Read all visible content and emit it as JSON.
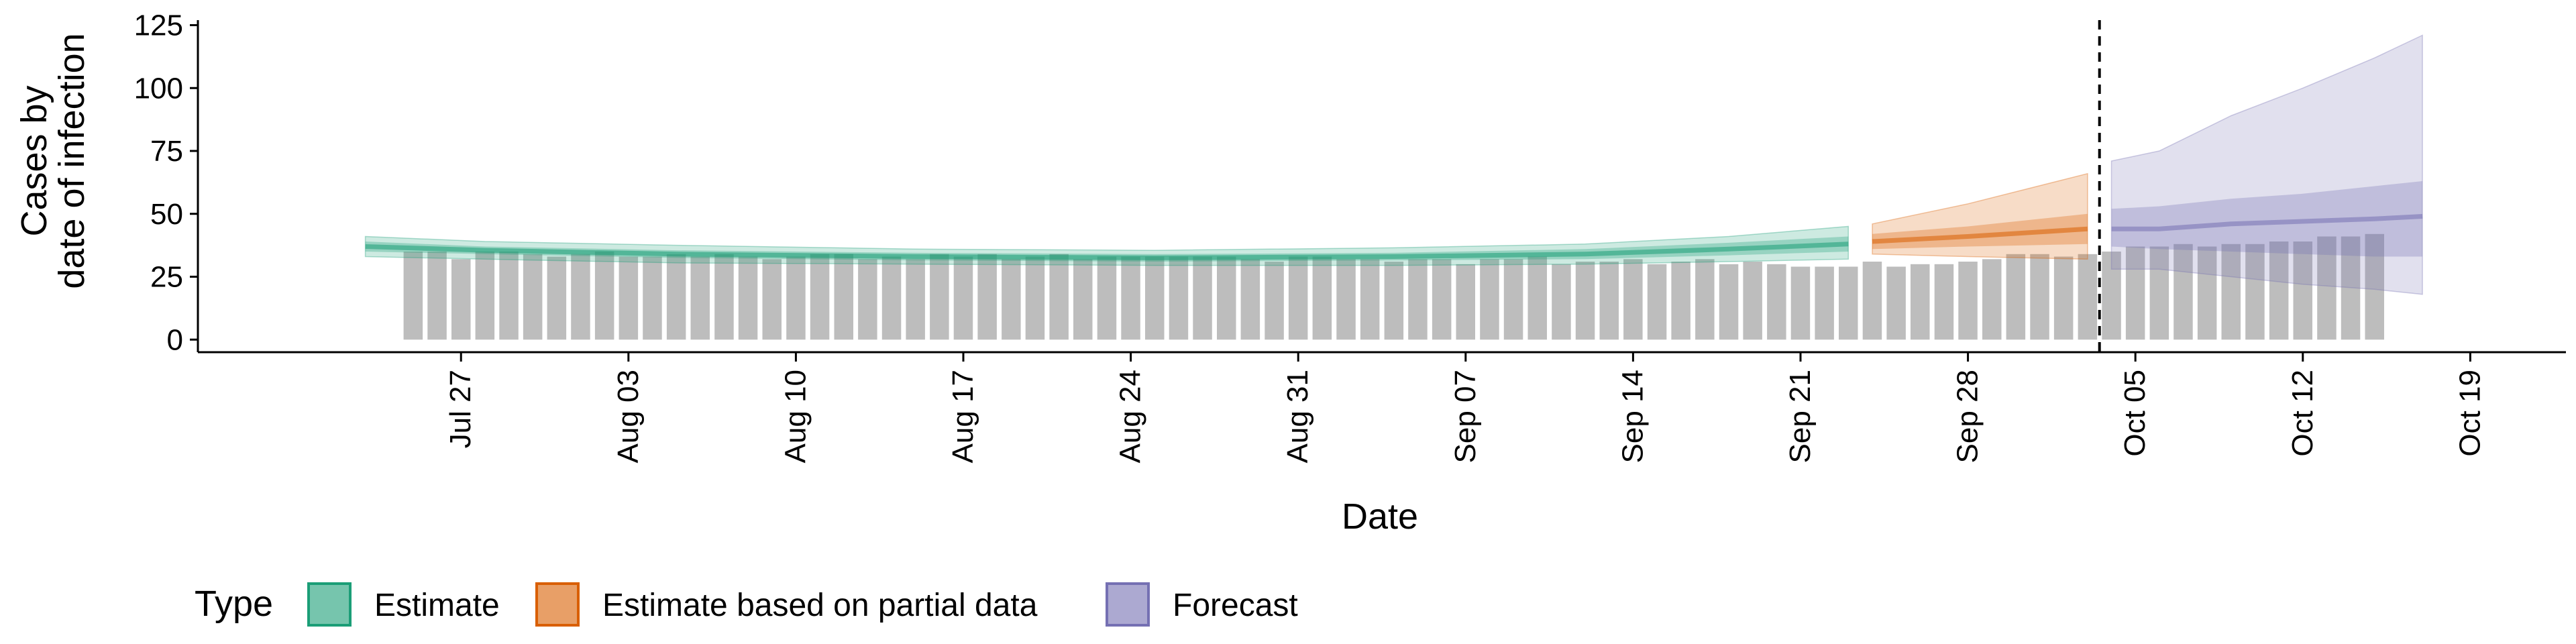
{
  "chart_data": {
    "type": "bar",
    "xlabel": "Date",
    "ylabel_lines": [
      "Cases by",
      "date of infection"
    ],
    "ylim": [
      -5,
      127
    ],
    "y_ticks": [
      0,
      25,
      50,
      75,
      100,
      125
    ],
    "xlim": [
      "2020-07-16",
      "2020-10-23"
    ],
    "x_ticks": [
      {
        "date": "2020-07-27",
        "label": "Jul 27"
      },
      {
        "date": "2020-08-03",
        "label": "Aug 03"
      },
      {
        "date": "2020-08-10",
        "label": "Aug 10"
      },
      {
        "date": "2020-08-17",
        "label": "Aug 17"
      },
      {
        "date": "2020-08-24",
        "label": "Aug 24"
      },
      {
        "date": "2020-08-31",
        "label": "Aug 31"
      },
      {
        "date": "2020-09-07",
        "label": "Sep 07"
      },
      {
        "date": "2020-09-14",
        "label": "Sep 14"
      },
      {
        "date": "2020-09-21",
        "label": "Sep 21"
      },
      {
        "date": "2020-09-28",
        "label": "Sep 28"
      },
      {
        "date": "2020-10-05",
        "label": "Oct 05"
      },
      {
        "date": "2020-10-12",
        "label": "Oct 12"
      },
      {
        "date": "2020-10-19",
        "label": "Oct 19"
      }
    ],
    "bars": {
      "start_date": "2020-07-25",
      "values": [
        35,
        35,
        32,
        35,
        35,
        34,
        33,
        34,
        35,
        33,
        33,
        34,
        33,
        34,
        33,
        32,
        33,
        34,
        34,
        32,
        33,
        32,
        34,
        33,
        34,
        32,
        33,
        34,
        32,
        33,
        33,
        33,
        33,
        33,
        33,
        32,
        31,
        33,
        33,
        32,
        32,
        31,
        32,
        32,
        30,
        32,
        32,
        33,
        30,
        31,
        31,
        32,
        30,
        31,
        32,
        30,
        31,
        30,
        29,
        29,
        29,
        31,
        29,
        30,
        30,
        31,
        32,
        34,
        34,
        33,
        34,
        35,
        37,
        37,
        38,
        37,
        38,
        38,
        39,
        39,
        41,
        41,
        42
      ]
    },
    "forecast_marker_date": "2020-10-03",
    "series": [
      {
        "name": "Estimate",
        "color": "#1B9E77",
        "dates": [
          "2020-07-23",
          "2020-07-28",
          "2020-08-05",
          "2020-08-15",
          "2020-08-25",
          "2020-09-04",
          "2020-09-12",
          "2020-09-18",
          "2020-09-23"
        ],
        "median": [
          37,
          35.5,
          34,
          33,
          32.5,
          33,
          34,
          36,
          38
        ],
        "inner": [
          [
            35,
            39
          ],
          [
            34,
            37
          ],
          [
            32.5,
            35.5
          ],
          [
            31.5,
            34.5
          ],
          [
            31,
            34
          ],
          [
            31.5,
            34.5
          ],
          [
            32,
            36
          ],
          [
            33.5,
            38.5
          ],
          [
            35,
            41
          ]
        ],
        "outer": [
          [
            33,
            41
          ],
          [
            32,
            39
          ],
          [
            30.5,
            37.5
          ],
          [
            30,
            36
          ],
          [
            29.5,
            35.5
          ],
          [
            29.5,
            36.5
          ],
          [
            30,
            38
          ],
          [
            31,
            41
          ],
          [
            32,
            45
          ]
        ]
      },
      {
        "name": "Estimate based on partial data",
        "color": "#D95F02",
        "dates": [
          "2020-09-24",
          "2020-09-28",
          "2020-10-03"
        ],
        "median": [
          39,
          41,
          44
        ],
        "inner": [
          [
            36,
            42
          ],
          [
            37,
            45
          ],
          [
            38,
            50
          ]
        ],
        "outer": [
          [
            34,
            46
          ],
          [
            33,
            54
          ],
          [
            32,
            66
          ]
        ]
      },
      {
        "name": "Forecast",
        "color": "#7570B3",
        "dates": [
          "2020-10-04",
          "2020-10-06",
          "2020-10-09",
          "2020-10-12",
          "2020-10-15",
          "2020-10-17"
        ],
        "median": [
          44,
          44,
          46,
          47,
          48,
          49
        ],
        "inner": [
          [
            37,
            52
          ],
          [
            36,
            53
          ],
          [
            35,
            56
          ],
          [
            34,
            58
          ],
          [
            33,
            61
          ],
          [
            33,
            63
          ]
        ],
        "outer": [
          [
            28,
            71
          ],
          [
            28,
            75
          ],
          [
            25,
            89
          ],
          [
            22,
            100
          ],
          [
            20,
            112
          ],
          [
            18,
            121
          ]
        ]
      }
    ],
    "legend": {
      "title": "Type",
      "position": "bottom",
      "items": [
        {
          "label": "Estimate",
          "color": "#1B9E77"
        },
        {
          "label": "Estimate based on partial data",
          "color": "#D95F02"
        },
        {
          "label": "Forecast",
          "color": "#7570B3"
        }
      ]
    },
    "grid": false
  }
}
